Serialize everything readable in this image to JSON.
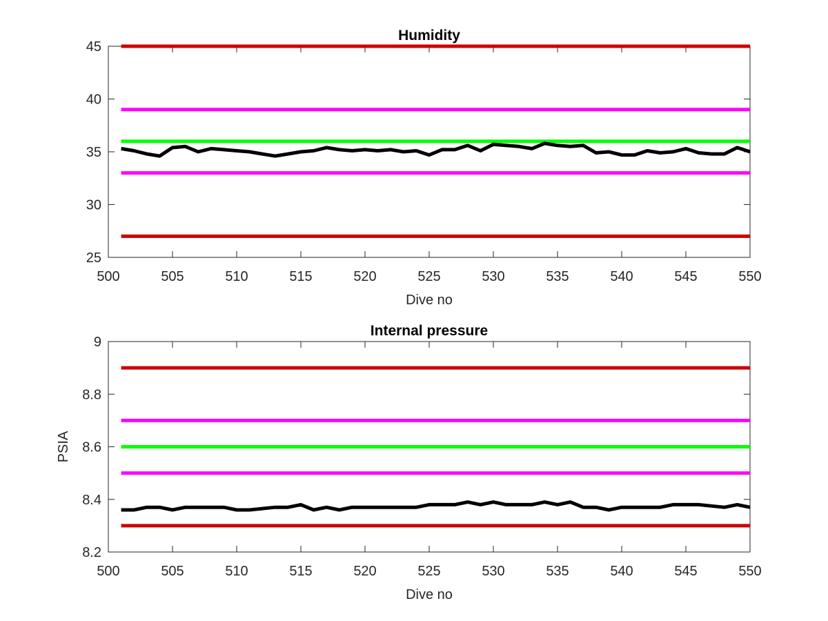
{
  "chart_data": [
    {
      "type": "line",
      "title": "Humidity",
      "xlabel": "Dive no",
      "ylabel": "",
      "xlim": [
        500,
        550
      ],
      "ylim": [
        25,
        45
      ],
      "xticks": [
        "500",
        "505",
        "510",
        "515",
        "520",
        "525",
        "530",
        "535",
        "540",
        "545",
        "550"
      ],
      "yticks": [
        "25",
        "30",
        "35",
        "40",
        "45"
      ],
      "grid": false,
      "series": [
        {
          "color": "#cc0000",
          "style": "threshold",
          "x": [
            501,
            550
          ],
          "values": [
            45,
            45
          ]
        },
        {
          "color": "#ff00ff",
          "style": "threshold",
          "x": [
            501,
            550
          ],
          "values": [
            39,
            39
          ]
        },
        {
          "color": "#00ff00",
          "style": "threshold",
          "x": [
            501,
            550
          ],
          "values": [
            36,
            36
          ]
        },
        {
          "color": "#ff00ff",
          "style": "threshold",
          "x": [
            501,
            550
          ],
          "values": [
            33,
            33
          ]
        },
        {
          "color": "#cc0000",
          "style": "threshold",
          "x": [
            501,
            550
          ],
          "values": [
            27,
            27
          ]
        },
        {
          "color": "#000000",
          "style": "data",
          "x": [
            501,
            502,
            503,
            504,
            505,
            506,
            507,
            508,
            509,
            510,
            511,
            512,
            513,
            514,
            515,
            516,
            517,
            518,
            519,
            520,
            521,
            522,
            523,
            524,
            525,
            526,
            527,
            528,
            529,
            530,
            531,
            532,
            533,
            534,
            535,
            536,
            537,
            538,
            539,
            540,
            541,
            542,
            543,
            544,
            545,
            546,
            547,
            548,
            549,
            550
          ],
          "values": [
            35.3,
            35.1,
            34.8,
            34.6,
            35.4,
            35.5,
            35.0,
            35.3,
            35.2,
            35.1,
            35.0,
            34.8,
            34.6,
            34.8,
            35.0,
            35.1,
            35.4,
            35.2,
            35.1,
            35.2,
            35.1,
            35.2,
            35.0,
            35.1,
            34.7,
            35.2,
            35.2,
            35.6,
            35.1,
            35.7,
            35.6,
            35.5,
            35.3,
            35.8,
            35.6,
            35.5,
            35.6,
            34.9,
            35.0,
            34.7,
            34.7,
            35.1,
            34.9,
            35.0,
            35.3,
            34.9,
            34.8,
            34.8,
            35.4,
            35.0
          ]
        }
      ]
    },
    {
      "type": "line",
      "title": "Internal pressure",
      "xlabel": "Dive no",
      "ylabel": "PSIA",
      "xlim": [
        500,
        550
      ],
      "ylim": [
        8.2,
        9.0
      ],
      "xticks": [
        "500",
        "505",
        "510",
        "515",
        "520",
        "525",
        "530",
        "535",
        "540",
        "545",
        "550"
      ],
      "yticks": [
        "8.2",
        "8.4",
        "8.6",
        "8.8",
        "9"
      ],
      "grid": false,
      "series": [
        {
          "color": "#cc0000",
          "style": "threshold",
          "x": [
            501,
            550
          ],
          "values": [
            8.9,
            8.9
          ]
        },
        {
          "color": "#ff00ff",
          "style": "threshold",
          "x": [
            501,
            550
          ],
          "values": [
            8.7,
            8.7
          ]
        },
        {
          "color": "#00ff00",
          "style": "threshold",
          "x": [
            501,
            550
          ],
          "values": [
            8.6,
            8.6
          ]
        },
        {
          "color": "#ff00ff",
          "style": "threshold",
          "x": [
            501,
            550
          ],
          "values": [
            8.5,
            8.5
          ]
        },
        {
          "color": "#cc0000",
          "style": "threshold",
          "x": [
            501,
            550
          ],
          "values": [
            8.3,
            8.3
          ]
        },
        {
          "color": "#000000",
          "style": "data",
          "x": [
            501,
            502,
            503,
            504,
            505,
            506,
            507,
            508,
            509,
            510,
            511,
            512,
            513,
            514,
            515,
            516,
            517,
            518,
            519,
            520,
            521,
            522,
            523,
            524,
            525,
            526,
            527,
            528,
            529,
            530,
            531,
            532,
            533,
            534,
            535,
            536,
            537,
            538,
            539,
            540,
            541,
            542,
            543,
            544,
            545,
            546,
            547,
            548,
            549,
            550
          ],
          "values": [
            8.36,
            8.36,
            8.37,
            8.37,
            8.36,
            8.37,
            8.37,
            8.37,
            8.37,
            8.36,
            8.36,
            8.365,
            8.37,
            8.37,
            8.38,
            8.36,
            8.37,
            8.36,
            8.37,
            8.37,
            8.37,
            8.37,
            8.37,
            8.37,
            8.38,
            8.38,
            8.38,
            8.39,
            8.38,
            8.39,
            8.38,
            8.38,
            8.38,
            8.39,
            8.38,
            8.39,
            8.37,
            8.37,
            8.36,
            8.37,
            8.37,
            8.37,
            8.37,
            8.38,
            8.38,
            8.38,
            8.375,
            8.37,
            8.38,
            8.37
          ]
        }
      ]
    }
  ]
}
